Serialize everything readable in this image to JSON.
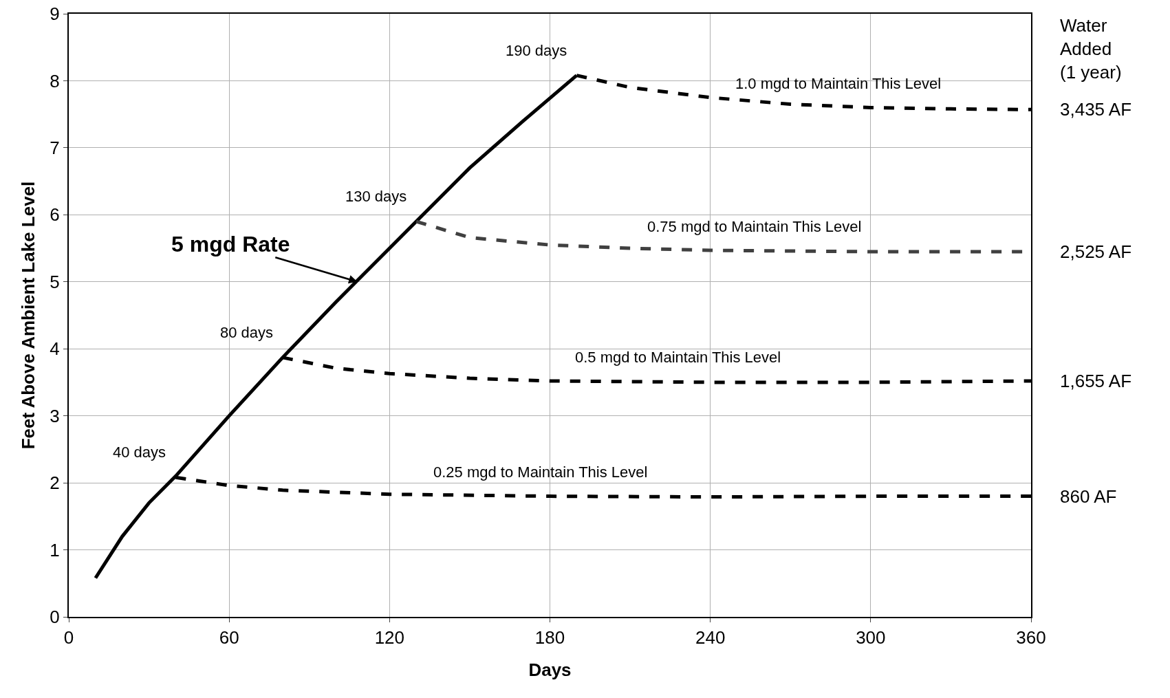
{
  "chart_data": {
    "type": "line",
    "xlabel": "Days",
    "ylabel": "Feet Above Ambient Lake Level",
    "xlim": [
      0,
      360
    ],
    "xticks": [
      0,
      60,
      120,
      180,
      240,
      300,
      360
    ],
    "ylim": [
      0,
      9
    ],
    "yticks": [
      0,
      1,
      2,
      3,
      4,
      5,
      6,
      7,
      8,
      9
    ],
    "grid": true,
    "marker": "none",
    "series": [
      {
        "color": "#000000",
        "line_style": "solid",
        "x": [
          10,
          20,
          30,
          40,
          60,
          80,
          100,
          120,
          130,
          150,
          170,
          190
        ],
        "values": [
          0.58,
          1.2,
          1.7,
          2.1,
          3.0,
          3.87,
          4.7,
          5.5,
          5.9,
          6.7,
          7.4,
          8.08
        ]
      },
      {
        "color": "#000000",
        "line_style": "dashed",
        "x": [
          190,
          210,
          240,
          270,
          300,
          330,
          360
        ],
        "values": [
          8.08,
          7.9,
          7.75,
          7.65,
          7.6,
          7.58,
          7.57
        ]
      },
      {
        "color": "#404040",
        "line_style": "dashed",
        "x": [
          130,
          150,
          180,
          210,
          240,
          300,
          360
        ],
        "values": [
          5.9,
          5.66,
          5.55,
          5.5,
          5.47,
          5.45,
          5.45
        ]
      },
      {
        "color": "#000000",
        "line_style": "dashed",
        "x": [
          80,
          100,
          120,
          150,
          180,
          240,
          300,
          360
        ],
        "values": [
          3.87,
          3.71,
          3.63,
          3.56,
          3.52,
          3.5,
          3.5,
          3.52
        ]
      },
      {
        "color": "#000000",
        "line_style": "dashed",
        "x": [
          40,
          60,
          80,
          120,
          180,
          240,
          300,
          360
        ],
        "values": [
          2.08,
          1.96,
          1.89,
          1.83,
          1.8,
          1.79,
          1.8,
          1.8
        ]
      }
    ],
    "annotations": [
      {
        "text": "5 mgd Rate",
        "x": 108,
        "y": 5.0
      },
      {
        "text": "190 days",
        "x": 190,
        "y": 8.08
      },
      {
        "text": "130 days",
        "x": 130,
        "y": 5.9
      },
      {
        "text": "80 days",
        "x": 80,
        "y": 3.87
      },
      {
        "text": "40 days",
        "x": 40,
        "y": 2.08
      },
      {
        "text": "1.0 mgd to Maintain This Level",
        "x": 330,
        "y": 7.58
      },
      {
        "text": "0.75 mgd to Maintain This Level",
        "x": 300,
        "y": 5.45
      },
      {
        "text": "0.5 mgd to Maintain This Level",
        "x": 270,
        "y": 3.5
      },
      {
        "text": "0.25 mgd to Maintain This Level",
        "x": 220,
        "y": 1.79
      },
      {
        "text": "3,435 AF",
        "x": 360,
        "y": 7.57
      },
      {
        "text": "2,525 AF",
        "x": 360,
        "y": 5.45
      },
      {
        "text": "1,655 AF",
        "x": 360,
        "y": 3.52
      },
      {
        "text": "860 AF",
        "x": 360,
        "y": 1.8
      },
      "Water\nAdded\n(1 year)"
    ]
  }
}
